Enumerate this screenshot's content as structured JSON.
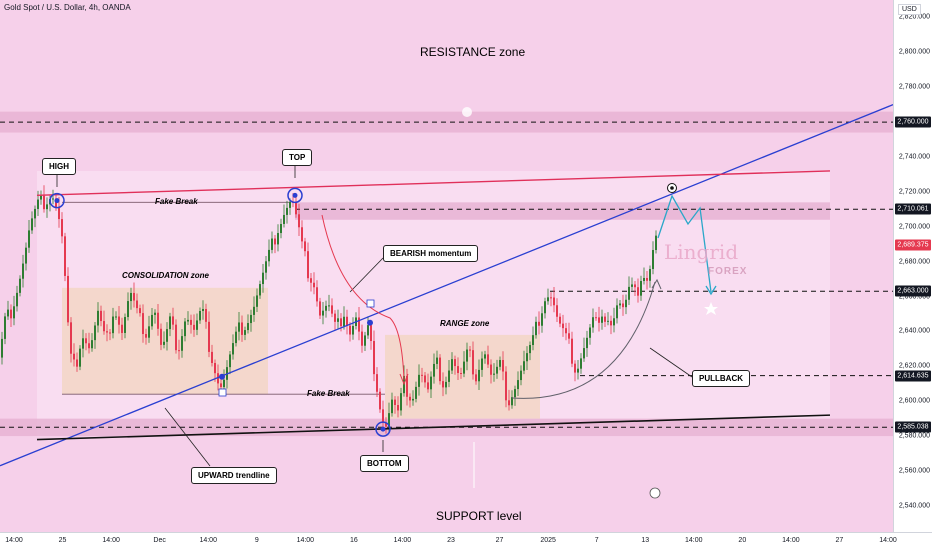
{
  "symbol": "Gold Spot / U.S. Dollar, 4h, OANDA",
  "currency": "USD",
  "labels": {
    "resistance_zone": "RESISTANCE zone",
    "support_level": "SUPPORT level",
    "high": "HIGH",
    "top": "TOP",
    "bottom": "BOTTOM",
    "fake_break_1": "Fake Break",
    "fake_break_2": "Fake Break",
    "consolidation_zone": "CONSOLIDATION zone",
    "range_zone": "RANGE zone",
    "bearish_momentum": "BEARISH momentum",
    "upward_trendline": "UPWARD trendline",
    "pullback": "PULLBACK"
  },
  "watermark": {
    "line1": "Lingrid",
    "line2": "FOREX"
  },
  "colors": {
    "background": "#f6d0ea",
    "zone_band": "#e8b3d4",
    "up_candle": "#2e7d32",
    "down_candle": "#e53950",
    "trendline": "#2a3fd1",
    "resistance_line": "#e0305a",
    "projection": "#2aa7c9"
  },
  "chart_data": {
    "type": "candlestick",
    "y_axis": {
      "ylim": [
        2525,
        2830
      ],
      "ticks": [
        2540,
        2560,
        2580,
        2600,
        2620,
        2640,
        2660,
        2680,
        2700,
        2720,
        2740,
        2760,
        2780,
        2800,
        2820
      ]
    },
    "x_axis": {
      "ticks": [
        "14:00",
        "25",
        "14:00",
        "Dec",
        "14:00",
        "9",
        "14:00",
        "16",
        "14:00",
        "23",
        "27",
        "2025",
        "7",
        "13",
        "14:00",
        "20",
        "14:00",
        "27",
        "14:00"
      ]
    },
    "price_tags": [
      {
        "value": 2760.0,
        "label": "2,760.000",
        "color": "#131722"
      },
      {
        "value": 2710.061,
        "label": "2,710.061",
        "color": "#131722"
      },
      {
        "value": 2689.375,
        "label": "2,689.375",
        "color": "#e53950"
      },
      {
        "value": 2663.0,
        "label": "2,663.000",
        "color": "#131722"
      },
      {
        "value": 2614.635,
        "label": "2,614.635",
        "color": "#131722"
      },
      {
        "value": 2585.038,
        "label": "2,585.038",
        "color": "#131722"
      }
    ],
    "levels": [
      {
        "name": "resistance",
        "value": 2760
      },
      {
        "name": "mid-resistance",
        "value": 2710.061
      },
      {
        "name": "target",
        "value": 2663
      },
      {
        "name": "pullback",
        "value": 2614.635
      },
      {
        "name": "support",
        "value": 2585.038
      }
    ],
    "zones": [
      {
        "name": "resistance-band",
        "from": 2754,
        "to": 2766
      },
      {
        "name": "mid-band",
        "from": 2704,
        "to": 2714
      },
      {
        "name": "support-band",
        "from": 2580,
        "to": 2590
      },
      {
        "name": "consolidation",
        "from": 2604,
        "to": 2665
      },
      {
        "name": "range",
        "from": 2590,
        "to": 2638
      }
    ],
    "path": [
      [
        0,
        2625
      ],
      [
        5,
        2645
      ],
      [
        10,
        2650
      ],
      [
        15,
        2660
      ],
      [
        20,
        2672
      ],
      [
        25,
        2685
      ],
      [
        30,
        2700
      ],
      [
        38,
        2712
      ],
      [
        45,
        2715
      ],
      [
        52,
        2720
      ],
      [
        58,
        2708
      ],
      [
        63,
        2690
      ],
      [
        66,
        2660
      ],
      [
        70,
        2625
      ],
      [
        75,
        2618
      ],
      [
        82,
        2640
      ],
      [
        90,
        2630
      ],
      [
        98,
        2650
      ],
      [
        106,
        2632
      ],
      [
        114,
        2655
      ],
      [
        122,
        2640
      ],
      [
        130,
        2662
      ],
      [
        138,
        2648
      ],
      [
        146,
        2640
      ],
      [
        154,
        2655
      ],
      [
        162,
        2628
      ],
      [
        170,
        2645
      ],
      [
        178,
        2630
      ],
      [
        186,
        2650
      ],
      [
        194,
        2640
      ],
      [
        202,
        2652
      ],
      [
        210,
        2630
      ],
      [
        218,
        2612
      ],
      [
        222,
        2608
      ],
      [
        230,
        2625
      ],
      [
        238,
        2640
      ],
      [
        246,
        2645
      ],
      [
        254,
        2655
      ],
      [
        262,
        2670
      ],
      [
        270,
        2685
      ],
      [
        278,
        2700
      ],
      [
        285,
        2710
      ],
      [
        292,
        2716
      ],
      [
        298,
        2700
      ],
      [
        302,
        2688
      ],
      [
        308,
        2675
      ],
      [
        314,
        2668
      ],
      [
        320,
        2650
      ],
      [
        328,
        2655
      ],
      [
        336,
        2640
      ],
      [
        344,
        2652
      ],
      [
        350,
        2640
      ],
      [
        356,
        2648
      ],
      [
        362,
        2630
      ],
      [
        368,
        2640
      ],
      [
        374,
        2620
      ],
      [
        380,
        2598
      ],
      [
        385,
        2584
      ],
      [
        392,
        2600
      ],
      [
        398,
        2592
      ],
      [
        404,
        2610
      ],
      [
        412,
        2602
      ],
      [
        420,
        2618
      ],
      [
        428,
        2605
      ],
      [
        436,
        2622
      ],
      [
        444,
        2610
      ],
      [
        452,
        2625
      ],
      [
        460,
        2612
      ],
      [
        468,
        2628
      ],
      [
        476,
        2615
      ],
      [
        484,
        2630
      ],
      [
        492,
        2612
      ],
      [
        500,
        2620
      ],
      [
        508,
        2600
      ],
      [
        516,
        2610
      ],
      [
        524,
        2622
      ],
      [
        532,
        2632
      ],
      [
        540,
        2650
      ],
      [
        546,
        2662
      ],
      [
        552,
        2660
      ],
      [
        558,
        2645
      ],
      [
        564,
        2638
      ],
      [
        570,
        2630
      ],
      [
        576,
        2618
      ],
      [
        582,
        2628
      ],
      [
        588,
        2638
      ],
      [
        594,
        2648
      ],
      [
        600,
        2640
      ],
      [
        606,
        2652
      ],
      [
        612,
        2645
      ],
      [
        618,
        2658
      ],
      [
        624,
        2652
      ],
      [
        630,
        2665
      ],
      [
        636,
        2660
      ],
      [
        642,
        2675
      ],
      [
        648,
        2670
      ],
      [
        654,
        2690
      ],
      [
        658,
        2698
      ]
    ],
    "trendline": {
      "from": [
        0,
        2563
      ],
      "to": [
        893,
        2770
      ]
    },
    "resistance_line": {
      "from": [
        37,
        2718
      ],
      "to": [
        830,
        2732
      ]
    },
    "support_line": {
      "from": [
        37,
        2578
      ],
      "to": [
        830,
        2592
      ]
    }
  }
}
